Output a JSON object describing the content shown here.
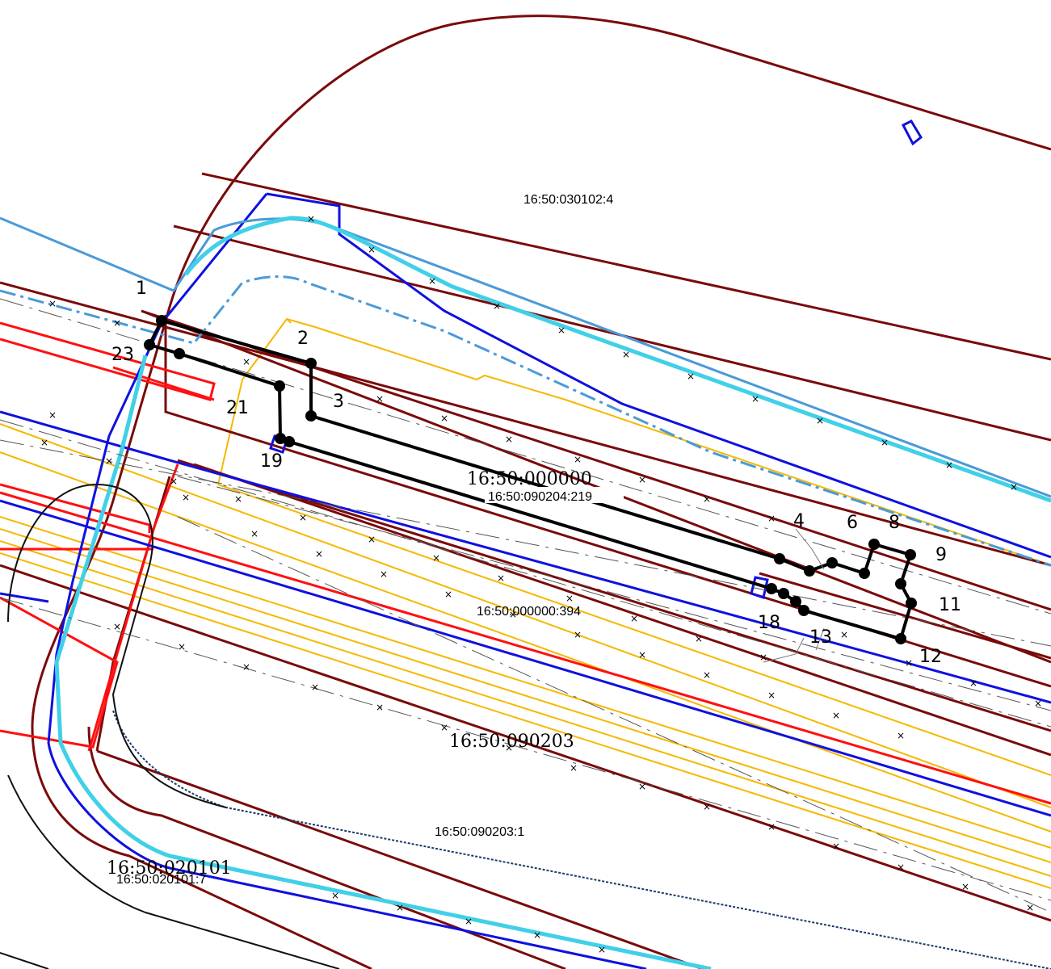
{
  "map": {
    "parcel_labels": {
      "p030102_4": "16:50:030102:4",
      "p000000_ser": "16:50:000000",
      "p090204_219": "16:50:090204:219",
      "p000000_394": "16:50:000000:394",
      "p090203_ser": "16:50:090203",
      "p090203_1": "16:50:090203:1",
      "p020101_ser": "16:50:020101",
      "p020101_7": "16:50:020101:7"
    },
    "point_labels": {
      "n1": "1",
      "n2": "2",
      "n3": "3",
      "n4": "4",
      "n6": "6",
      "n8": "8",
      "n9": "9",
      "n11": "11",
      "n12": "12",
      "n13": "13",
      "n18": "18",
      "n19": "19",
      "n21": "21",
      "n23": "23"
    }
  }
}
